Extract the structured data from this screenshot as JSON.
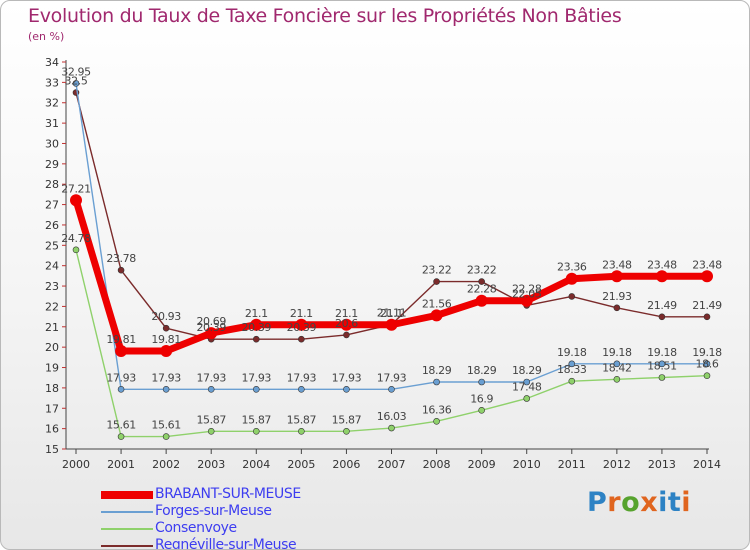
{
  "title": "Evolution du Taux de Taxe Foncière sur les Propriétés Non Bâties",
  "unit_label": "(en %)",
  "logo": {
    "text": "Proxiti",
    "letter_colors": [
      "#2d82c4",
      "#e0651f",
      "#57a32e",
      "#e0651f",
      "#2d82c4",
      "#2d82c4",
      "#e0651f"
    ]
  },
  "chart_data": {
    "type": "line",
    "title": "Evolution du Taux de Taxe Foncière sur les Propriétés Non Bâties",
    "ylabel": "(en %)",
    "xlabel": "",
    "ylim": [
      15,
      34
    ],
    "yticks": [
      15,
      16,
      17,
      18,
      19,
      20,
      21,
      22,
      23,
      24,
      25,
      26,
      27,
      28,
      29,
      30,
      31,
      32,
      33,
      34
    ],
    "grid": false,
    "legend_position": "bottom-left",
    "x": [
      "2000",
      "2001",
      "2002",
      "2003",
      "2004",
      "2005",
      "2006",
      "2007",
      "2008",
      "2009",
      "2010",
      "2011",
      "2012",
      "2013",
      "2014"
    ],
    "series": [
      {
        "name": "Regnéville-sur-Meuse",
        "color": "#7b2b2b",
        "values": [
          32.5,
          23.78,
          20.93,
          20.39,
          20.39,
          20.39,
          20.6,
          21.11,
          23.22,
          23.22,
          22.05,
          22.49,
          21.93,
          21.49,
          21.49
        ],
        "labels": [
          "32.5",
          "23.78",
          "20.93",
          "20.39",
          "20.39",
          "20.39",
          "20.6",
          "21.11",
          "23.22",
          "23.22",
          "22.05",
          "",
          "21.93",
          "21.49",
          "21.49"
        ]
      },
      {
        "name": "Consenvoye",
        "color": "#8fd16b",
        "values": [
          24.78,
          15.61,
          15.61,
          15.87,
          15.87,
          15.87,
          15.87,
          16.03,
          16.36,
          16.9,
          17.48,
          18.33,
          18.42,
          18.51,
          18.6
        ],
        "labels": [
          "24.78",
          "15.61",
          "15.61",
          "15.87",
          "15.87",
          "15.87",
          "15.87",
          "16.03",
          "16.36",
          "16.9",
          "17.48",
          "18.33",
          "18.42",
          "18.51",
          "18.6"
        ]
      },
      {
        "name": "Forges-sur-Meuse",
        "color": "#6a9fd2",
        "values": [
          32.95,
          17.93,
          17.93,
          17.93,
          17.93,
          17.93,
          17.93,
          17.93,
          18.29,
          18.29,
          18.29,
          19.18,
          19.18,
          19.18,
          19.18
        ],
        "labels": [
          "32.95",
          "17.93",
          "17.93",
          "17.93",
          "17.93",
          "17.93",
          "17.93",
          "17.93",
          "18.29",
          "18.29",
          "18.29",
          "19.18",
          "19.18",
          "19.18",
          "19.18"
        ]
      },
      {
        "name": "BRABANT-SUR-MEUSE",
        "color": "#ee0000",
        "values": [
          27.21,
          19.81,
          19.81,
          20.69,
          21.1,
          21.1,
          21.1,
          21.1,
          21.56,
          22.28,
          22.28,
          23.36,
          23.48,
          23.48,
          23.48
        ],
        "labels": [
          "27.21",
          "19.81",
          "19.81",
          "20.69",
          "21.1",
          "21.1",
          "21.1",
          "21.1",
          "21.56",
          "22.28",
          "22.28",
          "23.36",
          "23.48",
          "23.48",
          "23.48"
        ]
      }
    ],
    "legend": [
      {
        "name": "BRABANT-SUR-MEUSE",
        "color": "#ee0000"
      },
      {
        "name": "Forges-sur-Meuse",
        "color": "#6a9fd2"
      },
      {
        "name": "Consenvoye",
        "color": "#8fd16b"
      },
      {
        "name": "Regnéville-sur-Meuse",
        "color": "#7b2b2b"
      }
    ]
  }
}
